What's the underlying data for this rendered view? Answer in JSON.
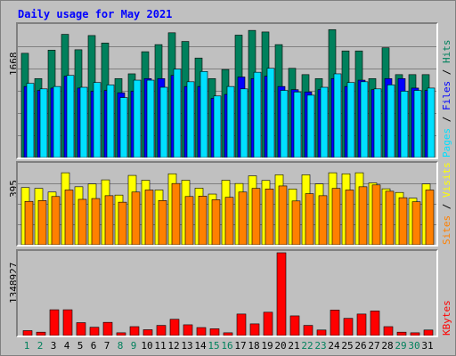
{
  "chart_data": {
    "title": "Daily usage for May 2021",
    "categories": [
      "1",
      "2",
      "3",
      "4",
      "5",
      "6",
      "7",
      "8",
      "9",
      "10",
      "11",
      "12",
      "13",
      "14",
      "15",
      "16",
      "17",
      "18",
      "19",
      "20",
      "21",
      "22",
      "23",
      "24",
      "25",
      "26",
      "27",
      "28",
      "29",
      "30",
      "31"
    ],
    "weekend_days": [
      "1",
      "2",
      "8",
      "9",
      "15",
      "16",
      "22",
      "23",
      "29",
      "30"
    ],
    "colors": {
      "hits": "#00805c",
      "files": "#0000ff",
      "pages": "#00e0ff",
      "visits": "#ffff00",
      "sites": "#ff8000",
      "kbytes": "#ff0000",
      "weekday_label": "#000000",
      "weekend_label": "#00805c",
      "grid": "#808080"
    },
    "panels": [
      {
        "type": "bar",
        "ymax_label": "1668",
        "ylim": [
          0,
          1668
        ],
        "series": [
          {
            "name": "Hits",
            "values": [
              1320,
              1000,
              1360,
              1560,
              1365,
              1545,
              1450,
              1000,
              1060,
              1340,
              1430,
              1580,
              1470,
              1260,
              1000,
              1115,
              1550,
              1610,
              1590,
              1430,
              1130,
              1050,
              1000,
              1620,
              1350,
              1350,
              1000,
              1390,
              1050,
              1050,
              1050
            ]
          },
          {
            "name": "Files",
            "values": [
              900,
              850,
              880,
              1030,
              880,
              840,
              850,
              820,
              840,
              1000,
              1000,
              1040,
              900,
              900,
              750,
              800,
              1020,
              1000,
              1030,
              900,
              860,
              830,
              860,
              1000,
              900,
              980,
              860,
              1000,
              1000,
              880,
              850
            ]
          },
          {
            "name": "Pages",
            "values": [
              940,
              870,
              900,
              1040,
              890,
              950,
              920,
              760,
              980,
              980,
              890,
              1120,
              960,
              1090,
              780,
              900,
              870,
              1080,
              1130,
              850,
              830,
              790,
              890,
              1060,
              950,
              960,
              870,
              920,
              840,
              850,
              880
            ]
          }
        ],
        "legend": [
          "Pages",
          "Files",
          "Hits"
        ]
      },
      {
        "type": "bar",
        "ymax_label": "395",
        "ylim": [
          0,
          395
        ],
        "series": [
          {
            "name": "Visits",
            "values": [
              282,
              278,
              260,
              355,
              286,
              300,
              320,
              245,
              342,
              318,
              270,
              350,
              318,
              279,
              250,
              318,
              302,
              340,
              317,
              345,
              275,
              345,
              300,
              355,
              350,
              355,
              305,
              276,
              258,
              230,
              300
            ]
          },
          {
            "name": "Sites",
            "values": [
              214,
              218,
              238,
              270,
              224,
              228,
              242,
              210,
              260,
              270,
              218,
              302,
              238,
              240,
              222,
              234,
              260,
              278,
              275,
              290,
              216,
              252,
              242,
              278,
              270,
              286,
              295,
              264,
              232,
              212,
              270
            ]
          }
        ],
        "legend": [
          "Sites",
          "Visits"
        ]
      },
      {
        "type": "bar",
        "ymax_label": "1348927",
        "ylim": [
          0,
          1348927
        ],
        "series": [
          {
            "name": "KBytes",
            "values": [
              80000,
              55000,
              420000,
              420000,
              210000,
              135000,
              215000,
              45000,
              145000,
              95000,
              165000,
              265000,
              175000,
              130000,
              110000,
              45000,
              350000,
              190000,
              380000,
              1348927,
              320000,
              165000,
              90000,
              415000,
              280000,
              350000,
              400000,
              145000,
              55000,
              45000,
              90000
            ]
          }
        ],
        "legend": [
          "KBytes"
        ]
      }
    ]
  }
}
